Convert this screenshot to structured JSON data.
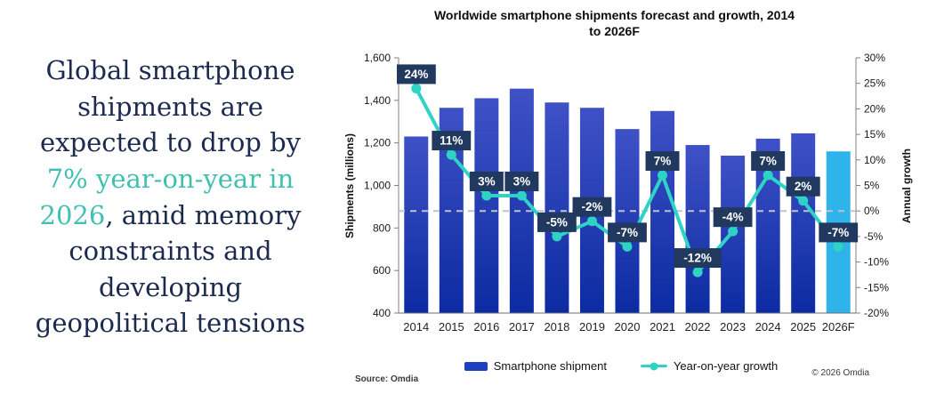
{
  "sidebar": {
    "segments": [
      {
        "text": "Global smartphone shipments are expected to drop by ",
        "color": "navy"
      },
      {
        "text": "7% year-on-year in 2026",
        "color": "teal"
      },
      {
        "text": ", amid memory constraints and developing geopolitical tensions",
        "color": "navy"
      }
    ]
  },
  "chart": {
    "title_lines": [
      "Worldwide smartphone shipments forecast and growth, 2014",
      "to 2026F"
    ]
  },
  "footer": {
    "source": "Source: Omdia",
    "copyright": "© 2026 Omdia"
  },
  "chart_data": {
    "type": "bar+line combo (dual axis)",
    "title": "Worldwide smartphone shipments forecast and growth, 2014 to 2026F",
    "categories": [
      "2014",
      "2015",
      "2016",
      "2017",
      "2018",
      "2019",
      "2020",
      "2021",
      "2022",
      "2023",
      "2024",
      "2025",
      "2026F"
    ],
    "series": [
      {
        "name": "Smartphone shipment",
        "type": "bar",
        "axis": "left",
        "values": [
          1230,
          1365,
          1410,
          1455,
          1390,
          1365,
          1265,
          1350,
          1190,
          1140,
          1220,
          1245,
          1160
        ]
      },
      {
        "name": "Year-on-year growth",
        "type": "line",
        "axis": "right",
        "values": [
          24,
          11,
          3,
          3,
          -5,
          -2,
          -7,
          7,
          -12,
          -4,
          7,
          2,
          -7
        ],
        "point_labels": [
          "24%",
          "11%",
          "3%",
          "3%",
          "-5%",
          "-2%",
          "-7%",
          "7%",
          "-12%",
          "-4%",
          "7%",
          "2%",
          "-7%"
        ]
      }
    ],
    "forecast_index": 12,
    "left_axis": {
      "label": "Shipments (millions)",
      "min": 400,
      "max": 1600,
      "ticks": [
        "1,600",
        "1,400",
        "1,200",
        "1,000",
        "800",
        "600",
        "400"
      ]
    },
    "right_axis": {
      "label": "Annual growth",
      "min": -20,
      "max": 30,
      "ticks": [
        "30%",
        "25%",
        "20%",
        "15%",
        "10%",
        "5%",
        "0%",
        "-5%",
        "-10%",
        "-15%",
        "-20%"
      ]
    },
    "zero_growth_line": {
      "value": 0,
      "style": "dashed"
    },
    "legend_position": "bottom center",
    "grid": "off",
    "colors": {
      "bar_top": "#3f51c6",
      "bar_bottom": "#0c2ba2",
      "forecast_bar": "#2eb3ea",
      "growth_line": "#2ed3c5",
      "label_box": "#22395f",
      "label_text": "#ffffff",
      "zero_line": "#bfc4cb",
      "axis": "#808080",
      "legend_swatch": "#1d40bc",
      "sidebar_navy": "#1b2a4e",
      "sidebar_teal": "#41c0b1"
    }
  }
}
